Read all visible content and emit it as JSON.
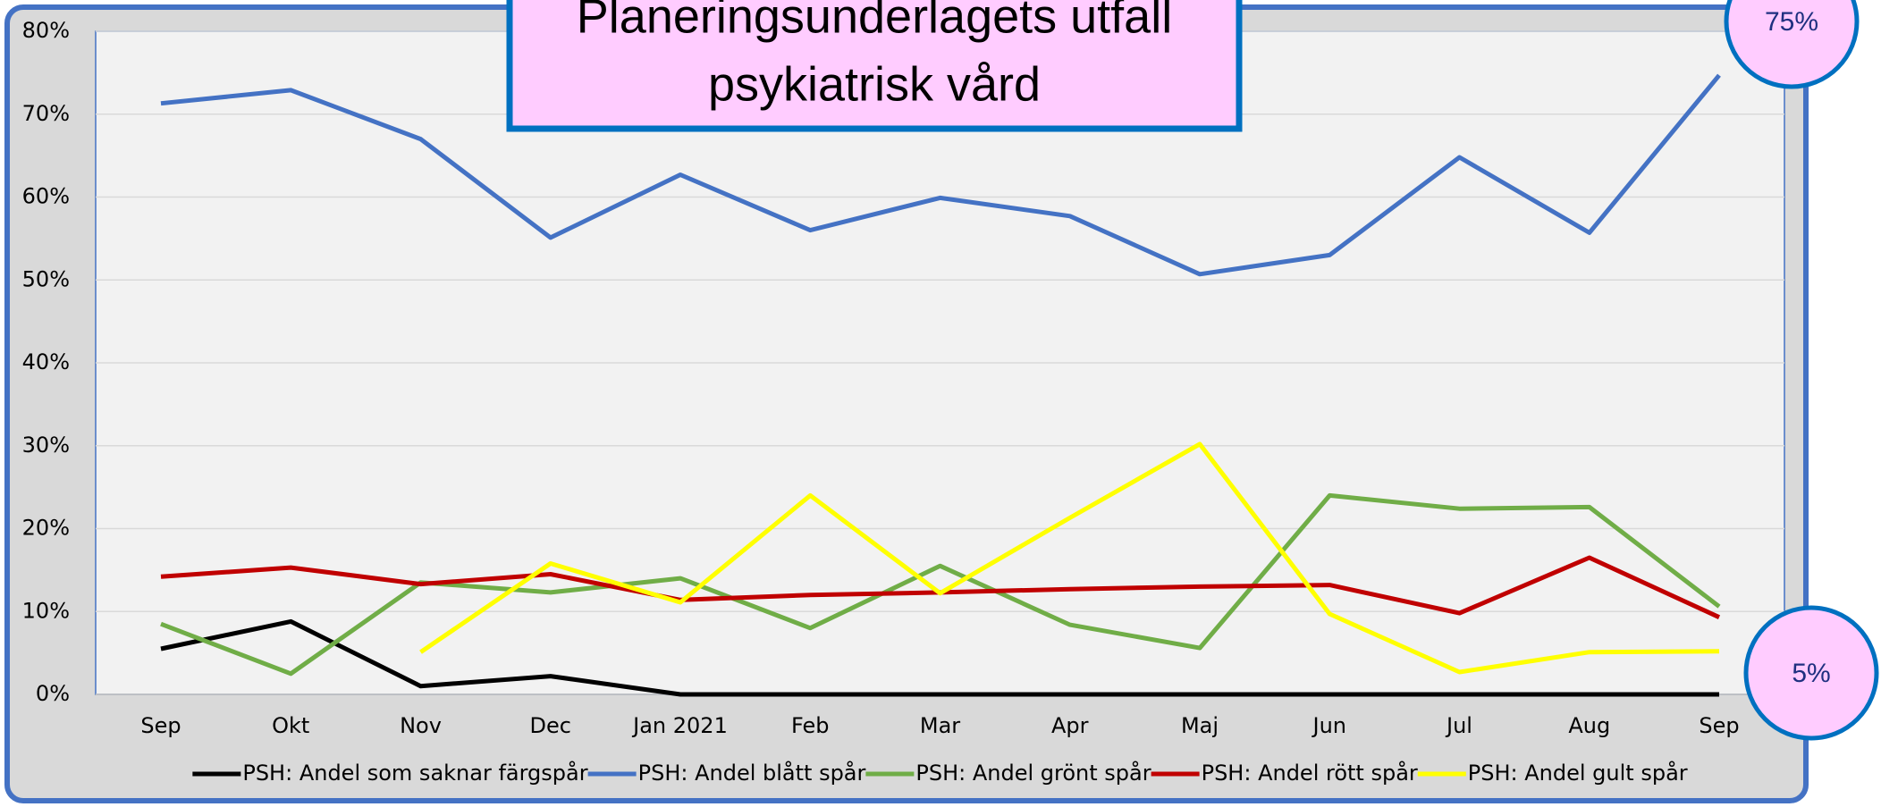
{
  "chart_data": {
    "type": "line",
    "title_lines": [
      "Planeringsunderlagets utfall",
      "psykiatrisk vård"
    ],
    "categories": [
      "Sep",
      "Okt",
      "Nov",
      "Dec",
      "Jan 2021",
      "Feb",
      "Mar",
      "Apr",
      "Maj",
      "Jun",
      "Jul",
      "Aug",
      "Sep"
    ],
    "series": [
      {
        "name": "PSH: Andel som saknar färgspår",
        "color": "#000000",
        "values": [
          5.5,
          8.8,
          1.0,
          2.2,
          0,
          0,
          0,
          0,
          0,
          0,
          0,
          0,
          0
        ]
      },
      {
        "name": "PSH: Andel blått spår",
        "color": "#4472c4",
        "values": [
          71.3,
          72.9,
          67.0,
          55.1,
          62.7,
          56.0,
          59.9,
          57.7,
          50.7,
          53.0,
          64.8,
          55.7,
          74.7
        ]
      },
      {
        "name": "PSH: Andel grönt spår",
        "color": "#70ad47",
        "values": [
          8.5,
          2.5,
          13.5,
          12.3,
          14.0,
          8.0,
          15.5,
          8.4,
          5.6,
          24.0,
          22.4,
          22.6,
          10.6
        ]
      },
      {
        "name": "PSH: Andel rött spår",
        "color": "#c00000",
        "values": [
          14.2,
          15.3,
          13.3,
          14.5,
          11.4,
          12.0,
          12.3,
          12.7,
          13.0,
          13.2,
          9.8,
          16.5,
          9.3
        ]
      },
      {
        "name": "PSH: Andel gult spår",
        "color": "#ffff00",
        "values": [
          null,
          null,
          5.1,
          15.8,
          11.1,
          24.0,
          12.2,
          21.3,
          30.2,
          9.7,
          2.7,
          5.1,
          5.2
        ]
      }
    ],
    "ylim": [
      0,
      80
    ],
    "yticks": [
      {
        "value": 0,
        "label": "0%"
      },
      {
        "value": 10,
        "label": "10%"
      },
      {
        "value": 20,
        "label": "20%"
      },
      {
        "value": 30,
        "label": "30%"
      },
      {
        "value": 40,
        "label": "40%"
      },
      {
        "value": 50,
        "label": "50%"
      },
      {
        "value": 60,
        "label": "60%"
      },
      {
        "value": 70,
        "label": "70%"
      },
      {
        "value": 80,
        "label": "80%"
      }
    ],
    "grid": true,
    "annotations": [
      "75%",
      "5%"
    ]
  }
}
